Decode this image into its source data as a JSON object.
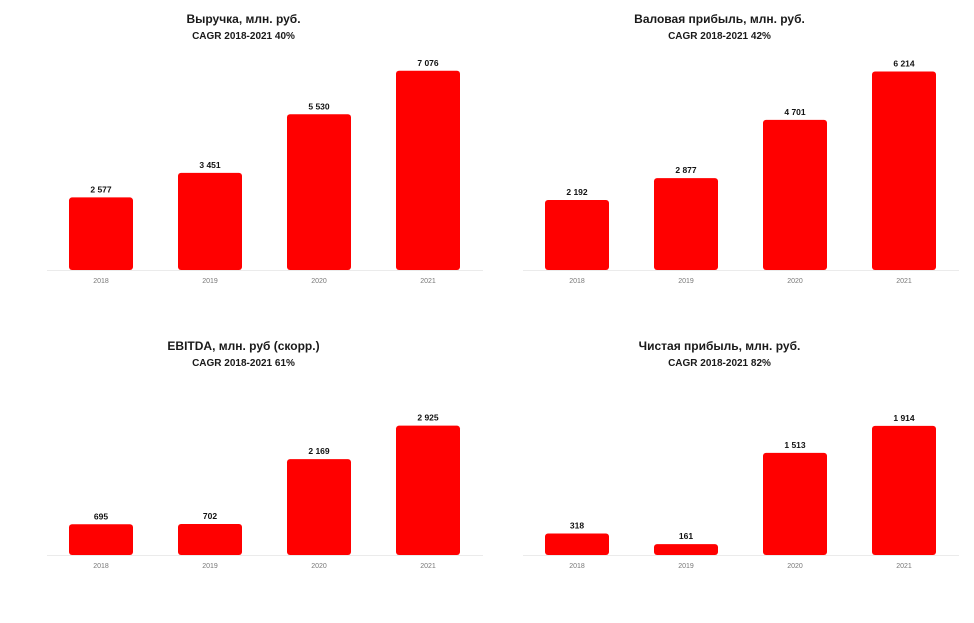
{
  "chart_data": [
    {
      "type": "bar",
      "title": "Выручка, млн. руб.",
      "subtitle": "CAGR 2018-2021 40%",
      "categories": [
        "2018",
        "2019",
        "2020",
        "2021"
      ],
      "values": [
        2577,
        3451,
        5530,
        7076
      ],
      "value_labels": [
        "2 577",
        "3 451",
        "5 530",
        "7 076"
      ],
      "ylim": [
        0,
        7600
      ],
      "grid": false,
      "bar_color": "#ff0000"
    },
    {
      "type": "bar",
      "title": "Валовая прибыль, млн. руб.",
      "subtitle": "CAGR 2018-2021 42%",
      "categories": [
        "2018",
        "2019",
        "2020",
        "2021"
      ],
      "values": [
        2192,
        2877,
        4701,
        6214
      ],
      "value_labels": [
        "2 192",
        "2 877",
        "4 701",
        "6 214"
      ],
      "ylim": [
        0,
        6700
      ],
      "grid": false,
      "bar_color": "#ff0000"
    },
    {
      "type": "bar",
      "title": "EBITDA, млн. руб (скорр.)",
      "subtitle": "CAGR 2018-2021 61%",
      "categories": [
        "2018",
        "2019",
        "2020",
        "2021"
      ],
      "values": [
        695,
        702,
        2169,
        2925
      ],
      "value_labels": [
        "695",
        "702",
        "2 169",
        "2 925"
      ],
      "ylim": [
        0,
        3800
      ],
      "grid": false,
      "bar_color": "#ff0000"
    },
    {
      "type": "bar",
      "title": "Чистая прибыль, млн. руб.",
      "subtitle": "CAGR 2018-2021 82%",
      "categories": [
        "2018",
        "2019",
        "2020",
        "2021"
      ],
      "values": [
        318,
        161,
        1513,
        1914
      ],
      "value_labels": [
        "318",
        "161",
        "1 513",
        "1 914"
      ],
      "ylim": [
        0,
        2490
      ],
      "grid": false,
      "bar_color": "#ff0000"
    }
  ]
}
